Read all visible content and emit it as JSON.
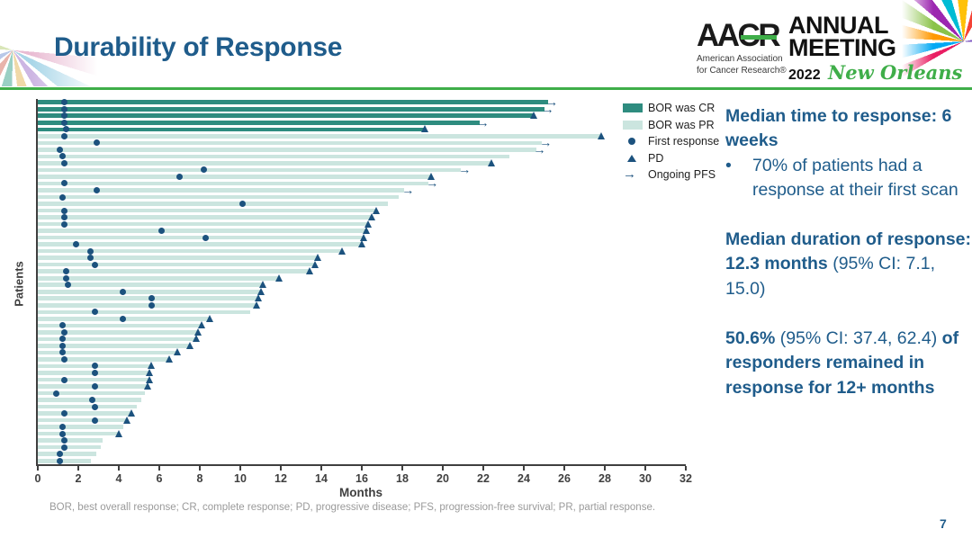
{
  "slide": {
    "title": "Durability of Response",
    "page_number": "7",
    "footnote": "BOR, best overall response; CR, complete response; PD, progressive disease; PFS, progression-free survival; PR, partial response.",
    "colors": {
      "title_blue": "#1F5C8B",
      "accent_green": "#3FAE49",
      "cr_teal": "#2E8C7F",
      "pr_teal": "#CBE5DF",
      "marker_navy": "#1C527E",
      "axis_gray": "#3F3F3F",
      "footnote_gray": "#9A9A9A"
    }
  },
  "logo": {
    "acronym": "AACR",
    "org_line1": "American Association",
    "org_line2": "for Cancer Research®",
    "event_line1": "ANNUAL",
    "event_line2": "MEETING",
    "year": "2022",
    "location": "New Orleans"
  },
  "annotations": [
    {
      "bullet": false,
      "gap_before": false,
      "runs": [
        {
          "text": "Median time to response: 6 weeks",
          "bold": true
        }
      ]
    },
    {
      "bullet": true,
      "gap_before": false,
      "runs": [
        {
          "text": "70% of patients had a response at their first scan",
          "bold": false
        }
      ]
    },
    {
      "bullet": false,
      "gap_before": true,
      "runs": [
        {
          "text": "Median duration of response: 12.3 months ",
          "bold": true
        },
        {
          "text": "(95% CI: 7.1, 15.0)",
          "bold": false
        }
      ]
    },
    {
      "bullet": false,
      "gap_before": true,
      "runs": [
        {
          "text": "50.6% ",
          "bold": true
        },
        {
          "text": "(95% CI: 37.4, 62.4) ",
          "bold": false
        },
        {
          "text": "of responders remained in response for 12+ months",
          "bold": true
        }
      ]
    }
  ],
  "chart_data": {
    "type": "bar",
    "subtype": "swimmer-plot",
    "orientation": "horizontal",
    "title": "",
    "xlabel": "Months",
    "ylabel": "Patients",
    "xlim": [
      0,
      32
    ],
    "xticks": [
      0,
      2,
      4,
      6,
      8,
      10,
      12,
      14,
      16,
      18,
      20,
      22,
      24,
      26,
      28,
      30,
      32
    ],
    "grid": false,
    "legend_position": "top-right",
    "units": "months",
    "legend": [
      {
        "type": "cr",
        "label": "BOR was CR"
      },
      {
        "type": "pr",
        "label": "BOR was PR"
      },
      {
        "type": "dot",
        "label": "First response"
      },
      {
        "type": "pd",
        "label": "PD"
      },
      {
        "type": "arrow",
        "label": "Ongoing PFS"
      }
    ],
    "patients": [
      {
        "bor": "CR",
        "end": 25.2,
        "marker": "arrow",
        "first": 1.3
      },
      {
        "bor": "CR",
        "end": 25.0,
        "marker": "arrow",
        "first": 1.3
      },
      {
        "bor": "CR",
        "end": 24.5,
        "marker": "pd",
        "first": 1.3
      },
      {
        "bor": "CR",
        "end": 21.8,
        "marker": "arrow",
        "first": 1.3
      },
      {
        "bor": "CR",
        "end": 19.1,
        "marker": "pd",
        "first": 1.4
      },
      {
        "bor": "PR",
        "end": 27.8,
        "marker": "pd",
        "first": 1.3
      },
      {
        "bor": "PR",
        "end": 24.9,
        "marker": "arrow",
        "first": 2.9
      },
      {
        "bor": "PR",
        "end": 24.6,
        "marker": "arrow",
        "first": 1.1
      },
      {
        "bor": "PR",
        "end": 23.3,
        "marker": "none",
        "first": 1.2
      },
      {
        "bor": "PR",
        "end": 22.4,
        "marker": "pd",
        "first": 1.3
      },
      {
        "bor": "PR",
        "end": 20.9,
        "marker": "arrow",
        "first": 8.2
      },
      {
        "bor": "PR",
        "end": 19.4,
        "marker": "pd",
        "first": 7.0
      },
      {
        "bor": "PR",
        "end": 19.3,
        "marker": "arrow",
        "first": 1.3
      },
      {
        "bor": "PR",
        "end": 18.1,
        "marker": "arrow",
        "first": 2.9
      },
      {
        "bor": "PR",
        "end": 17.8,
        "marker": "none",
        "first": 1.2
      },
      {
        "bor": "PR",
        "end": 17.3,
        "marker": "none",
        "first": 10.1
      },
      {
        "bor": "PR",
        "end": 16.7,
        "marker": "pd",
        "first": 1.3
      },
      {
        "bor": "PR",
        "end": 16.5,
        "marker": "pd",
        "first": 1.3
      },
      {
        "bor": "PR",
        "end": 16.3,
        "marker": "pd",
        "first": 1.3
      },
      {
        "bor": "PR",
        "end": 16.2,
        "marker": "pd",
        "first": 6.1
      },
      {
        "bor": "PR",
        "end": 16.1,
        "marker": "pd",
        "first": 8.3
      },
      {
        "bor": "PR",
        "end": 16.0,
        "marker": "pd",
        "first": 1.9
      },
      {
        "bor": "PR",
        "end": 15.0,
        "marker": "pd",
        "first": 2.6
      },
      {
        "bor": "PR",
        "end": 13.8,
        "marker": "pd",
        "first": 2.6
      },
      {
        "bor": "PR",
        "end": 13.7,
        "marker": "pd",
        "first": 2.8
      },
      {
        "bor": "PR",
        "end": 13.4,
        "marker": "pd",
        "first": 1.4
      },
      {
        "bor": "PR",
        "end": 11.9,
        "marker": "pd",
        "first": 1.4
      },
      {
        "bor": "PR",
        "end": 11.1,
        "marker": "pd",
        "first": 1.5
      },
      {
        "bor": "PR",
        "end": 11.0,
        "marker": "pd",
        "first": 4.2
      },
      {
        "bor": "PR",
        "end": 10.9,
        "marker": "pd",
        "first": 5.6
      },
      {
        "bor": "PR",
        "end": 10.8,
        "marker": "pd",
        "first": 5.6
      },
      {
        "bor": "PR",
        "end": 10.5,
        "marker": "none",
        "first": 2.8
      },
      {
        "bor": "PR",
        "end": 8.5,
        "marker": "pd",
        "first": 4.2
      },
      {
        "bor": "PR",
        "end": 8.1,
        "marker": "pd",
        "first": 1.2
      },
      {
        "bor": "PR",
        "end": 7.9,
        "marker": "pd",
        "first": 1.3
      },
      {
        "bor": "PR",
        "end": 7.8,
        "marker": "pd",
        "first": 1.2
      },
      {
        "bor": "PR",
        "end": 7.5,
        "marker": "pd",
        "first": 1.2
      },
      {
        "bor": "PR",
        "end": 6.9,
        "marker": "pd",
        "first": 1.2
      },
      {
        "bor": "PR",
        "end": 6.5,
        "marker": "pd",
        "first": 1.3
      },
      {
        "bor": "PR",
        "end": 5.6,
        "marker": "pd",
        "first": 2.8
      },
      {
        "bor": "PR",
        "end": 5.5,
        "marker": "pd",
        "first": 2.8
      },
      {
        "bor": "PR",
        "end": 5.5,
        "marker": "pd",
        "first": 1.3
      },
      {
        "bor": "PR",
        "end": 5.4,
        "marker": "pd",
        "first": 2.8
      },
      {
        "bor": "PR",
        "end": 5.3,
        "marker": "none",
        "first": 0.9
      },
      {
        "bor": "PR",
        "end": 5.1,
        "marker": "none",
        "first": 2.7
      },
      {
        "bor": "PR",
        "end": 4.9,
        "marker": "none",
        "first": 2.8
      },
      {
        "bor": "PR",
        "end": 4.6,
        "marker": "pd",
        "first": 1.3
      },
      {
        "bor": "PR",
        "end": 4.4,
        "marker": "pd",
        "first": 2.8
      },
      {
        "bor": "PR",
        "end": 4.2,
        "marker": "none",
        "first": 1.2
      },
      {
        "bor": "PR",
        "end": 4.0,
        "marker": "pd",
        "first": 1.2
      },
      {
        "bor": "PR",
        "end": 3.2,
        "marker": "none",
        "first": 1.3
      },
      {
        "bor": "PR",
        "end": 3.1,
        "marker": "none",
        "first": 1.3
      },
      {
        "bor": "PR",
        "end": 2.9,
        "marker": "none",
        "first": 1.1
      },
      {
        "bor": "PR",
        "end": 2.6,
        "marker": "none",
        "first": 1.1
      }
    ]
  }
}
